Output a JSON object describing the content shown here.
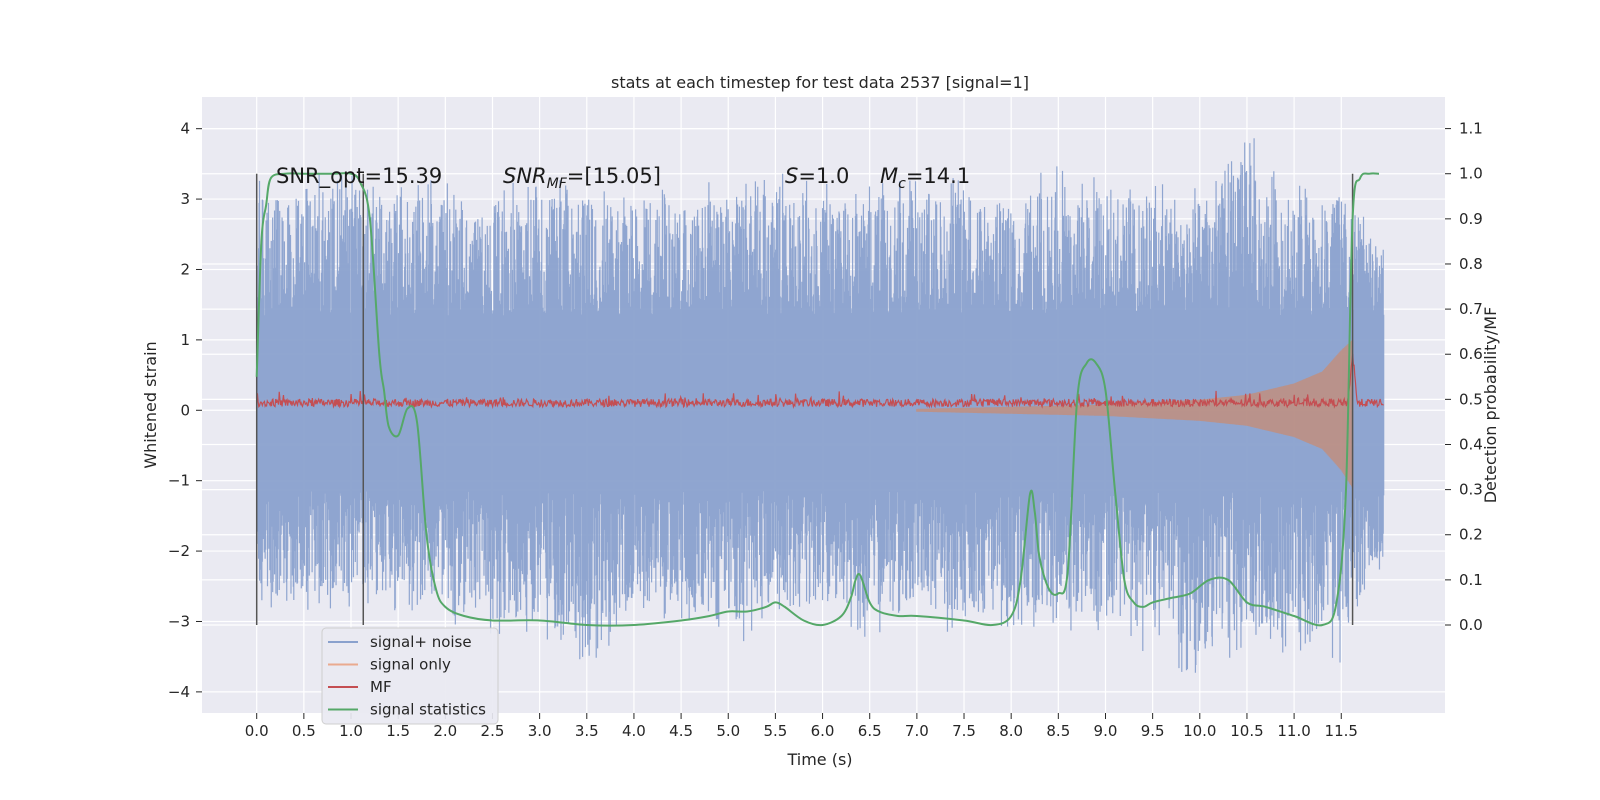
{
  "chart_data": {
    "type": "line",
    "title": "stats at each timestep for test data 2537 [signal=1]",
    "xlabel": "Time (s)",
    "ylabel_left": "Whitened strain",
    "ylabel_right": "Detection probability/MF",
    "xlim": [
      -0.58,
      12.6
    ],
    "ylim_left": [
      -4.3,
      4.45
    ],
    "ylim_right": [
      -0.195,
      1.17
    ],
    "x_ticks": [
      "0.0",
      "0.5",
      "1.0",
      "1.5",
      "2.0",
      "2.5",
      "3.0",
      "3.5",
      "4.0",
      "4.5",
      "5.0",
      "5.5",
      "6.0",
      "6.5",
      "7.0",
      "7.5",
      "8.0",
      "8.5",
      "9.0",
      "9.5",
      "10.0",
      "10.5",
      "11.0",
      "11.5"
    ],
    "y_ticks_left": [
      "−4",
      "−3",
      "−2",
      "−1",
      "0",
      "1",
      "2",
      "3",
      "4"
    ],
    "y_ticks_right": [
      "0.0",
      "0.1",
      "0.2",
      "0.3",
      "0.4",
      "0.5",
      "0.6",
      "0.7",
      "0.8",
      "0.9",
      "1.0",
      "1.1"
    ],
    "grid": true,
    "legend_position": "lower-left",
    "annotations": {
      "snr_opt": "SNR_opt=15.39",
      "snr_mf_main": "SNR",
      "snr_mf_sub": "MF",
      "snr_mf_value": "=[15.05]",
      "s_symbol": "S",
      "s_value": "=1.0",
      "mc_symbol": "M",
      "mc_sub": "c",
      "mc_value": "=14.1"
    },
    "markers_x": [
      0.0,
      1.13,
      11.62
    ],
    "noise_envelope": {
      "x": [
        0.0,
        0.5,
        1.0,
        1.5,
        2.0,
        2.5,
        3.0,
        3.5,
        4.0,
        4.5,
        5.0,
        5.5,
        6.0,
        6.5,
        7.0,
        7.5,
        8.0,
        8.5,
        9.0,
        9.5,
        10.0,
        10.5,
        11.0,
        11.5,
        11.95
      ],
      "upper": [
        3.3,
        3.3,
        3.6,
        3.4,
        3.3,
        3.2,
        3.3,
        3.3,
        3.2,
        3.2,
        3.3,
        3.4,
        3.3,
        3.2,
        3.3,
        3.3,
        3.2,
        3.6,
        3.3,
        3.3,
        3.3,
        4.0,
        3.2,
        3.3,
        2.4
      ],
      "lower": [
        -2.9,
        -2.9,
        -2.9,
        -2.9,
        -3.0,
        -3.4,
        -3.3,
        -3.8,
        -3.0,
        -3.0,
        -3.4,
        -3.1,
        -3.0,
        -3.3,
        -3.0,
        -3.3,
        -3.1,
        -3.1,
        -3.3,
        -3.5,
        -3.9,
        -3.4,
        -3.5,
        -3.6,
        -2.3
      ],
      "core_upper": 1.35,
      "core_lower": -1.15
    },
    "signal_only_envelope": {
      "x": [
        7.0,
        8.0,
        9.0,
        10.0,
        10.5,
        11.0,
        11.3,
        11.5,
        11.62
      ],
      "upper": [
        0.02,
        0.05,
        0.08,
        0.15,
        0.22,
        0.38,
        0.55,
        0.85,
        1.0
      ],
      "lower": [
        -0.02,
        -0.05,
        -0.08,
        -0.15,
        -0.22,
        -0.38,
        -0.55,
        -0.85,
        -1.1
      ]
    },
    "mf_trace": {
      "x": [
        0.0,
        11.95
      ],
      "baseline": 0.1,
      "amplitude": 0.08,
      "peak_x": 11.62,
      "peak_value": 0.95
    },
    "series": [
      {
        "name": "signal statistics",
        "axis": "right",
        "x": [
          0.0,
          0.05,
          0.1,
          0.15,
          0.3,
          0.5,
          0.8,
          1.0,
          1.1,
          1.2,
          1.3,
          1.35,
          1.4,
          1.5,
          1.6,
          1.7,
          1.8,
          1.9,
          2.0,
          2.2,
          2.5,
          3.0,
          3.5,
          4.0,
          4.5,
          4.8,
          5.0,
          5.2,
          5.4,
          5.5,
          5.6,
          5.8,
          6.0,
          6.2,
          6.3,
          6.35,
          6.4,
          6.5,
          6.6,
          6.8,
          7.0,
          7.5,
          7.8,
          8.0,
          8.1,
          8.2,
          8.25,
          8.3,
          8.4,
          8.5,
          8.6,
          8.7,
          8.8,
          8.9,
          9.0,
          9.1,
          9.2,
          9.3,
          9.4,
          9.5,
          9.7,
          9.9,
          10.1,
          10.3,
          10.5,
          10.7,
          11.0,
          11.3,
          11.45,
          11.55,
          11.62,
          11.7,
          11.8,
          11.9
        ],
        "y": [
          0.55,
          0.85,
          0.93,
          0.99,
          1.0,
          1.0,
          1.0,
          1.0,
          0.98,
          0.9,
          0.6,
          0.52,
          0.44,
          0.42,
          0.48,
          0.45,
          0.2,
          0.08,
          0.04,
          0.02,
          0.01,
          0.01,
          0.0,
          0.0,
          0.01,
          0.02,
          0.03,
          0.03,
          0.04,
          0.05,
          0.04,
          0.01,
          0.0,
          0.02,
          0.06,
          0.1,
          0.11,
          0.05,
          0.03,
          0.02,
          0.02,
          0.01,
          0.0,
          0.02,
          0.1,
          0.29,
          0.25,
          0.15,
          0.08,
          0.07,
          0.12,
          0.5,
          0.58,
          0.58,
          0.52,
          0.3,
          0.1,
          0.05,
          0.04,
          0.05,
          0.06,
          0.07,
          0.1,
          0.1,
          0.05,
          0.04,
          0.02,
          0.0,
          0.05,
          0.3,
          0.9,
          0.99,
          1.0,
          1.0
        ]
      }
    ],
    "legend": [
      {
        "name": "signal+ noise",
        "color": "#8aa1cd"
      },
      {
        "name": "signal only",
        "color": "#eaaa8f"
      },
      {
        "name": "MF",
        "color": "#c44e52"
      },
      {
        "name": "signal statistics",
        "color": "#55a868"
      }
    ],
    "colors": {
      "plot_background": "#eaeaf2",
      "grid": "#ffffff",
      "noise": "#8aa1cd",
      "signal_only": "#dd8452",
      "mf": "#c44e52",
      "statistics": "#55a868",
      "marker": "#555555"
    }
  }
}
